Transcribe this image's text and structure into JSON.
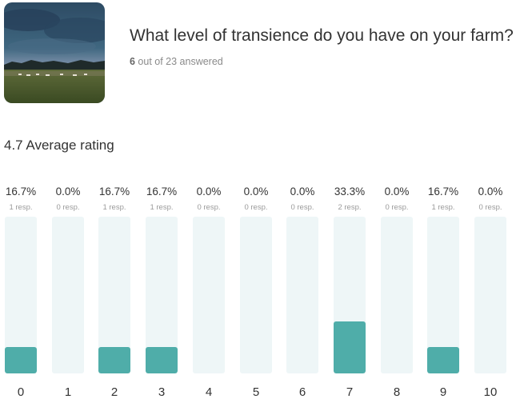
{
  "question": {
    "title": "What level of transience do you have on your farm?",
    "answered_count": "6",
    "answered_rest": " out of 23 answered"
  },
  "summary": {
    "average": "4.7 Average rating"
  },
  "colors": {
    "bar_fill": "#4fada9",
    "bar_track": "#eef6f7"
  },
  "chart_data": {
    "type": "bar",
    "categories": [
      "0",
      "1",
      "2",
      "3",
      "4",
      "5",
      "6",
      "7",
      "8",
      "9",
      "10"
    ],
    "values": [
      16.7,
      0.0,
      16.7,
      16.7,
      0.0,
      0.0,
      0.0,
      33.3,
      0.0,
      16.7,
      0.0
    ],
    "percent_labels": [
      "16.7%",
      "0.0%",
      "16.7%",
      "16.7%",
      "0.0%",
      "0.0%",
      "0.0%",
      "33.3%",
      "0.0%",
      "16.7%",
      "0.0%"
    ],
    "response_labels": [
      "1 resp.",
      "0 resp.",
      "1 resp.",
      "1 resp.",
      "0 resp.",
      "0 resp.",
      "0 resp.",
      "2 resp.",
      "0 resp.",
      "1 resp.",
      "0 resp."
    ],
    "ylim": [
      0,
      100
    ]
  }
}
